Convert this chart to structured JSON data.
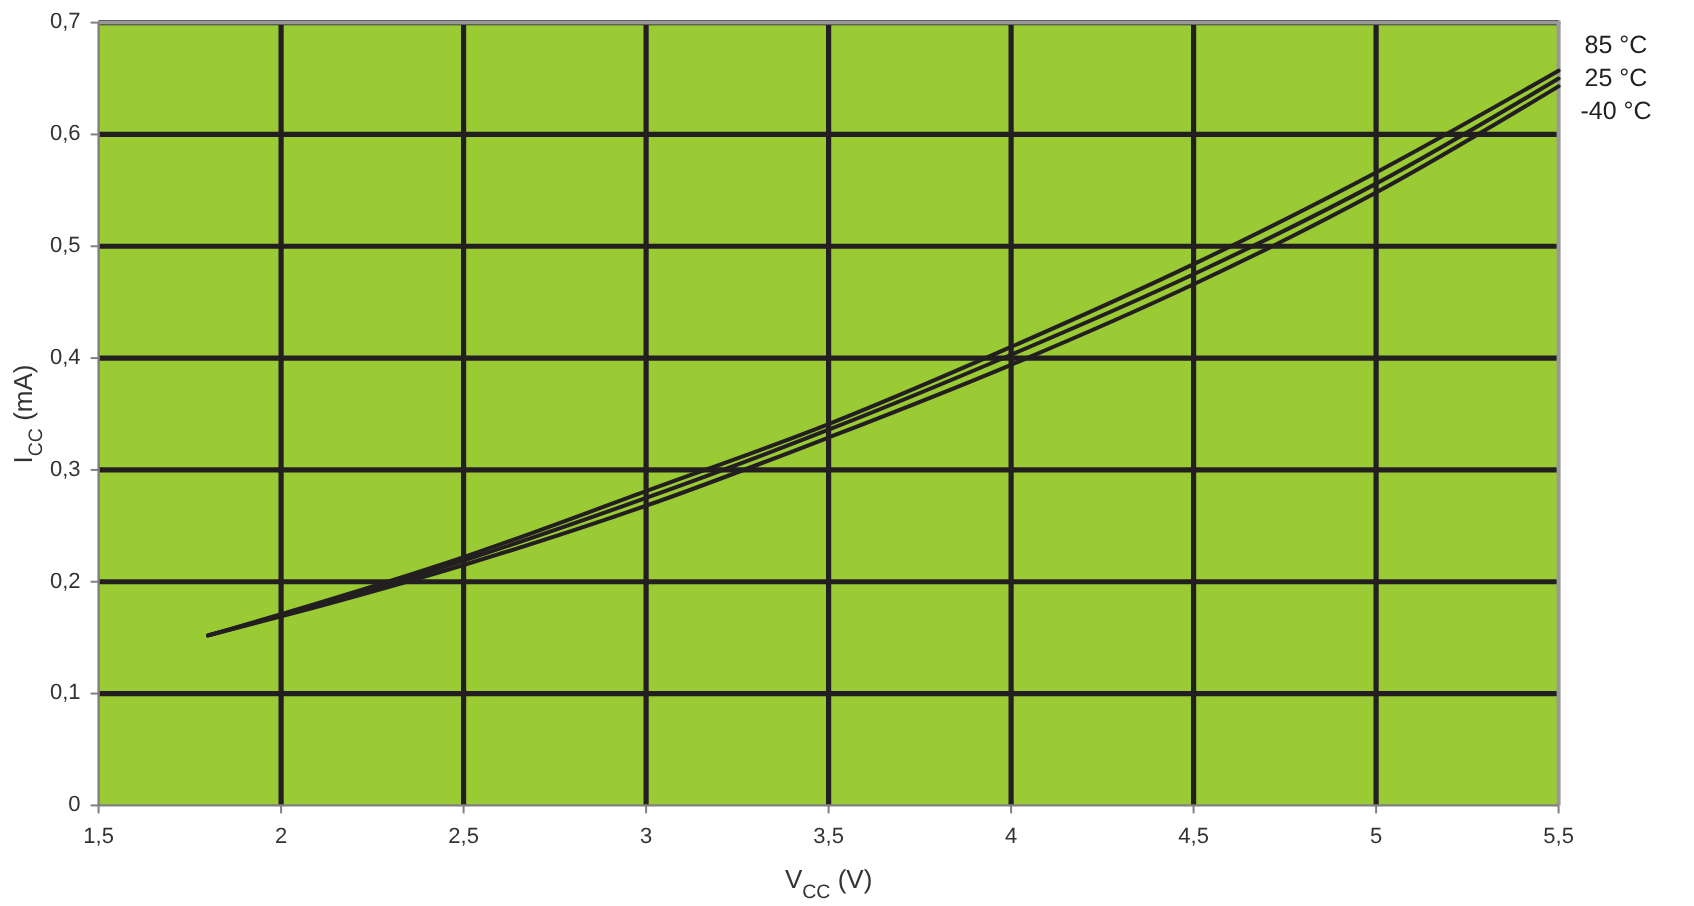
{
  "chart_data": {
    "type": "line",
    "xlabel": "V$_{CC}$ (V)",
    "ylabel": "I$_{CC}$ (mA)",
    "x": [
      1.8,
      2,
      2.5,
      3,
      3.5,
      4,
      4.5,
      5,
      5.5
    ],
    "series": [
      {
        "name": "85 °C",
        "color": "#231f20",
        "values": [
          0.152,
          0.171,
          0.222,
          0.281,
          0.341,
          0.41,
          0.484,
          0.566,
          0.657
        ]
      },
      {
        "name": "25 °C",
        "color": "#231f20",
        "values": [
          0.152,
          0.17,
          0.219,
          0.275,
          0.336,
          0.403,
          0.475,
          0.556,
          0.65
        ]
      },
      {
        "name": "-40 °C",
        "color": "#231f20",
        "values": [
          0.152,
          0.169,
          0.215,
          0.268,
          0.329,
          0.394,
          0.466,
          0.548,
          0.643
        ]
      }
    ],
    "xlim": [
      1.5,
      5.5
    ],
    "xticks": [
      {
        "value": 1.5,
        "label": "1,5"
      },
      2,
      {
        "value": 2.5,
        "label": "2,5"
      },
      3,
      {
        "value": 3.5,
        "label": "3,5"
      },
      4,
      {
        "value": 4.5,
        "label": "4,5"
      },
      5,
      {
        "value": 5.5,
        "label": "5,5"
      }
    ],
    "ylim": [
      0,
      0.7
    ],
    "yticks": [
      0,
      {
        "value": 0.1,
        "label": "0,1"
      },
      {
        "value": 0.2,
        "label": "0,2"
      },
      {
        "value": 0.3,
        "label": "0,3"
      },
      {
        "value": 0.4,
        "label": "0,4"
      },
      {
        "value": 0.5,
        "label": "0,5"
      },
      {
        "value": 0.6,
        "label": "0,6"
      },
      {
        "value": 0.7,
        "label": "0,7"
      }
    ],
    "grid": true,
    "legend": "right",
    "marker": "none",
    "line_style": "solid"
  }
}
